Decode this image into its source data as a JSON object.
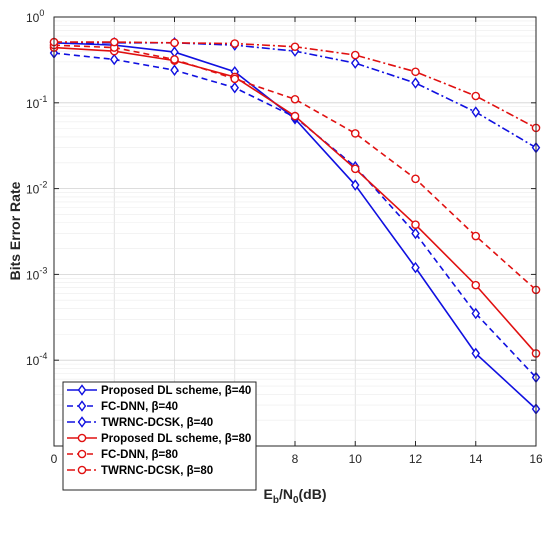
{
  "chart_data": {
    "type": "line",
    "xlabel": "E_b/N_0(dB)",
    "xlabel_parts": {
      "main": "E",
      "sub1": "b",
      "mid": "/N",
      "sub2": "0",
      "tail": "(dB)"
    },
    "ylabel": "Bits Error Rate",
    "x_scale": "linear",
    "y_scale": "log",
    "xlim": [
      0,
      16
    ],
    "ylim": [
      1e-05,
      1
    ],
    "x_ticks": [
      "0",
      "2",
      "4",
      "6",
      "8",
      "10",
      "12",
      "14",
      "16"
    ],
    "y_ticks": [
      {
        "value": 1,
        "base": "10",
        "exp": "0"
      },
      {
        "value": 0.1,
        "base": "10",
        "exp": "-1"
      },
      {
        "value": 0.01,
        "base": "10",
        "exp": "-2"
      },
      {
        "value": 0.001,
        "base": "10",
        "exp": "-3"
      },
      {
        "value": 0.0001,
        "base": "10",
        "exp": "-4"
      }
    ],
    "grid": true,
    "legend_position": "bottom-left",
    "x": [
      0,
      2,
      4,
      6,
      8,
      10,
      12,
      14,
      16
    ],
    "series": [
      {
        "name": "Proposed DL scheme, β=40",
        "color": "#1010e0",
        "dash": "solid",
        "marker": "diamond",
        "values": [
          0.5,
          0.47,
          0.39,
          0.23,
          0.065,
          0.011,
          0.0012,
          0.00012,
          2.7e-05
        ]
      },
      {
        "name": "FC-DNN, β=40",
        "color": "#1010e0",
        "dash": "dashed",
        "marker": "diamond",
        "values": [
          0.38,
          0.32,
          0.24,
          0.15,
          0.068,
          0.018,
          0.003,
          0.00035,
          6.3e-05
        ]
      },
      {
        "name": "TWRNC-DCSK, β=40",
        "color": "#1010e0",
        "dash": "dashdot",
        "marker": "diamond",
        "values": [
          0.5,
          0.5,
          0.5,
          0.47,
          0.4,
          0.29,
          0.17,
          0.078,
          0.03
        ]
      },
      {
        "name": "Proposed DL scheme, β=80",
        "color": "#e01010",
        "dash": "solid",
        "marker": "circle",
        "values": [
          0.44,
          0.4,
          0.31,
          0.2,
          0.07,
          0.017,
          0.0038,
          0.00075,
          0.00012
        ]
      },
      {
        "name": "FC-DNN, β=80",
        "color": "#e01010",
        "dash": "dashed",
        "marker": "circle",
        "values": [
          0.47,
          0.44,
          0.32,
          0.19,
          0.11,
          0.044,
          0.013,
          0.0028,
          0.00066
        ]
      },
      {
        "name": "TWRNC-DCSK, β=80",
        "color": "#e01010",
        "dash": "dashdot",
        "marker": "circle",
        "values": [
          0.51,
          0.51,
          0.5,
          0.49,
          0.45,
          0.36,
          0.23,
          0.12,
          0.051
        ]
      }
    ]
  }
}
